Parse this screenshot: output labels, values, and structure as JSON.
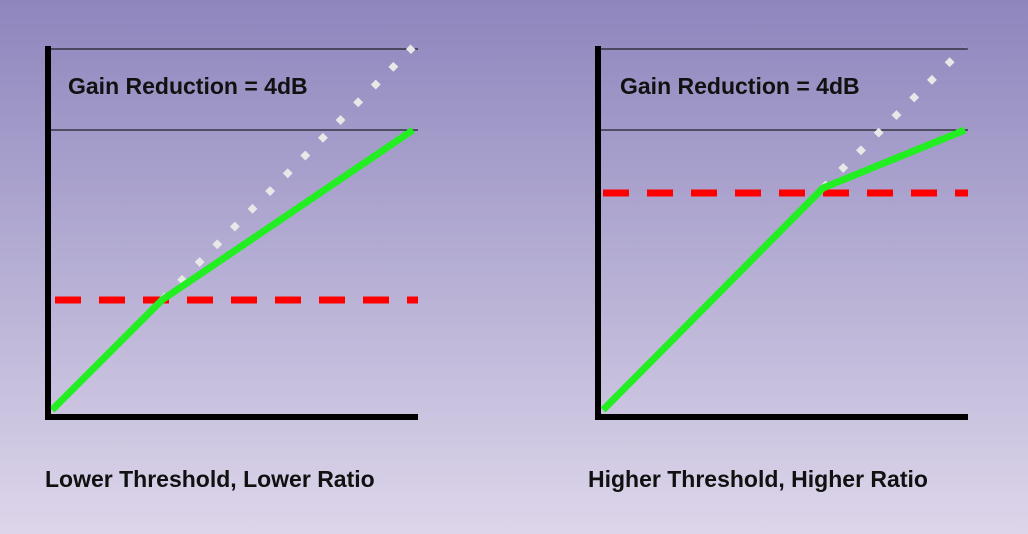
{
  "panels": [
    {
      "annotation": "Gain Reduction = 4dB",
      "caption": "Lower Threshold, Lower Ratio"
    },
    {
      "annotation": "Gain Reduction = 4dB",
      "caption": "Higher Threshold, Higher Ratio"
    }
  ]
}
